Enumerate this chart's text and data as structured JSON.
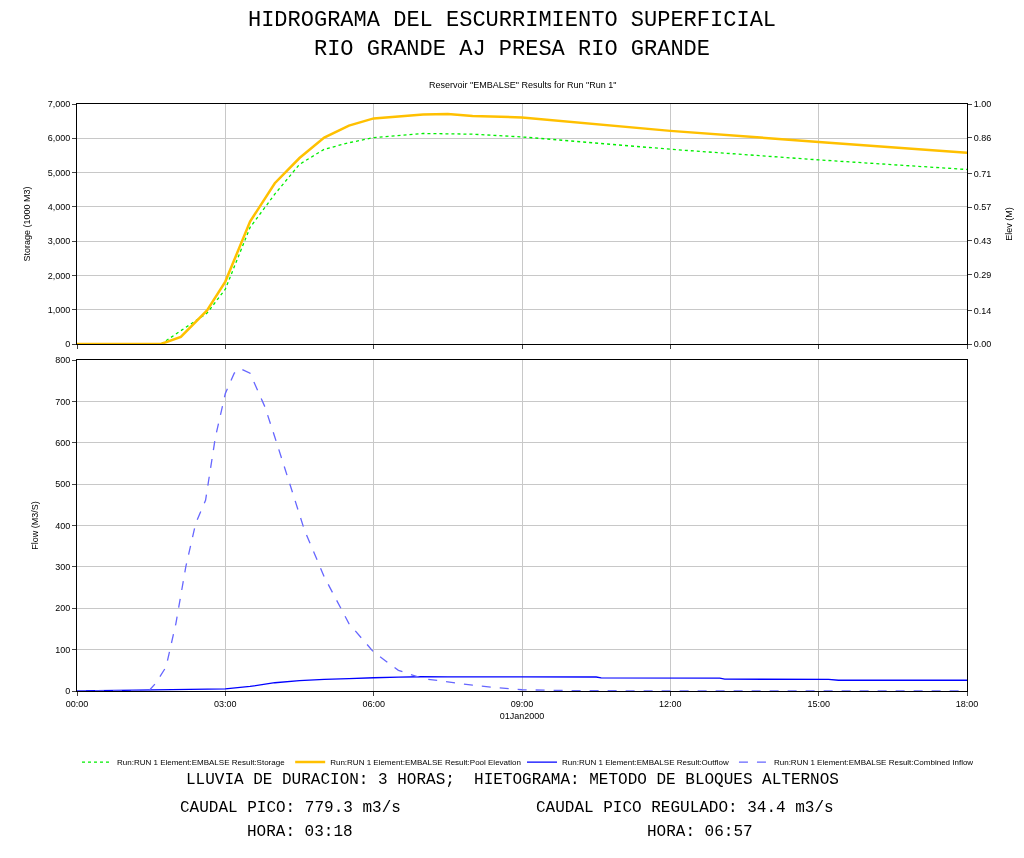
{
  "chart_data": [
    {
      "type": "line",
      "title": "HIDROGRAMA DEL ESCURRIMIENTO SUPERFICIAL\nRIO GRANDE AJ PRESA RIO GRANDE",
      "subtitle": "Reservoir \"EMBALSE\" Results for Run \"Run 1\"",
      "ylabel": "Storage (1000 M3)",
      "y2label": "Elev (M)",
      "xlim": [
        0,
        18
      ],
      "xticks": [
        {
          "value": 0,
          "label": null
        },
        {
          "value": 3,
          "label": null
        },
        {
          "value": 6,
          "label": null
        },
        {
          "value": 9,
          "label": null
        },
        {
          "value": 12,
          "label": null
        },
        {
          "value": 15,
          "label": null
        },
        {
          "value": 18,
          "label": null
        }
      ],
      "ylim": [
        0,
        7000
      ],
      "yticks": [
        0,
        {
          "value": 1000,
          "label": "1,000"
        },
        {
          "value": 2000,
          "label": "2,000"
        },
        {
          "value": 3000,
          "label": "3,000"
        },
        {
          "value": 4000,
          "label": "4,000"
        },
        {
          "value": 5000,
          "label": "5,000"
        },
        {
          "value": 6000,
          "label": "6,000"
        },
        {
          "value": 7000,
          "label": "7,000"
        }
      ],
      "y2lim": [
        0,
        1
      ],
      "y2ticks": [
        {
          "value": 0,
          "label": "0.00"
        },
        0.14,
        0.29,
        0.43,
        0.57,
        0.71,
        0.86,
        {
          "value": 1,
          "label": "1.00"
        }
      ],
      "grid": true,
      "tick_labels": "y",
      "legend": "bottom",
      "marker": "none",
      "series": [
        {
          "name": "Run:RUN 1 Element:EMBALSE Result:Storage",
          "color": "#00ee00",
          "line_style": "dotted",
          "x": [
            0,
            1.7,
            2.63,
            3,
            3.5,
            4,
            4.5,
            5,
            5.5,
            6,
            7,
            8,
            9,
            12,
            15,
            18
          ],
          "values": [
            0,
            0,
            900,
            1600,
            3400,
            4370,
            5240,
            5680,
            5870,
            6020,
            6140,
            6120,
            6040,
            5680,
            5370,
            5090
          ]
        },
        {
          "name": "Run:RUN 1 Element:EMBALSE Result:Pool Elevation",
          "color": "#ffc000",
          "line_style": "solid",
          "axis": "y2",
          "x": [
            0,
            1.7,
            2.1,
            2.63,
            3,
            3.5,
            4,
            4.5,
            5,
            5.5,
            6,
            7,
            7.5,
            8,
            9,
            12,
            15,
            18
          ],
          "values": [
            0,
            0,
            0.03,
            0.14,
            0.26,
            0.51,
            0.67,
            0.775,
            0.86,
            0.91,
            0.94,
            0.956,
            0.958,
            0.95,
            0.944,
            0.888,
            0.842,
            0.797
          ]
        }
      ]
    },
    {
      "type": "line",
      "xlabel": "01Jan2000",
      "ylabel": "Flow (M3/S)",
      "xlim": [
        0,
        18
      ],
      "xticks": [
        {
          "value": 0,
          "label": "00:00"
        },
        {
          "value": 3,
          "label": "03:00"
        },
        {
          "value": 6,
          "label": "06:00"
        },
        {
          "value": 9,
          "label": "09:00"
        },
        {
          "value": 12,
          "label": "12:00"
        },
        {
          "value": 15,
          "label": "15:00"
        },
        {
          "value": 18,
          "label": "18:00"
        }
      ],
      "ylim": [
        0,
        800
      ],
      "yticks": [
        0,
        100,
        200,
        300,
        400,
        500,
        600,
        700,
        800
      ],
      "grid": true,
      "legend": "bottom",
      "marker": "none",
      "annotations": [
        "LLUVIA DE DURACION: 3 HORAS;  HIETOGRAMA: METODO DE BLOQUES ALTERNOS",
        "CAUDAL PICO: 779.3 m3/s",
        "CAUDAL PICO REGULADO: 34.4 m3/s",
        "HORA: 03:18",
        "HORA: 06:57"
      ],
      "series": [
        {
          "name": "Run:RUN 1 Element:EMBALSE Result:Outflow",
          "color": "#0000ff",
          "line_style": "solid",
          "x": [
            0,
            1.2,
            3,
            3.5,
            4,
            4.5,
            5,
            5.5,
            6,
            6.5,
            6.95,
            7.5,
            8,
            9,
            10.5,
            10.6,
            13,
            13.1,
            15.2,
            15.4,
            18
          ],
          "values": [
            0,
            2,
            5,
            11,
            20,
            25,
            28,
            30,
            32,
            33.5,
            34.4,
            34.3,
            34.2,
            34,
            33.8,
            31.5,
            31,
            28.5,
            28.3,
            26,
            26
          ]
        },
        {
          "name": "Run:RUN 1 Element:EMBALSE Result:Combined Inflow",
          "color": "#6666ff",
          "line_style": "dashed",
          "x": [
            0,
            1.45,
            1.6,
            1.8,
            2.0,
            2.2,
            2.4,
            2.6,
            2.8,
            3.0,
            3.18,
            3.3,
            3.5,
            3.8,
            4.0,
            4.3,
            4.6,
            5.0,
            5.5,
            6.0,
            6.5,
            7.0,
            7.5,
            8.0,
            8.5,
            9.0,
            9.5,
            10,
            11,
            18
          ],
          "values": [
            0,
            0,
            20,
            58,
            163,
            300,
            405,
            461,
            614,
            719,
            768,
            779.3,
            768,
            687,
            614,
            502,
            389,
            276,
            163,
            94,
            50,
            30,
            22,
            14,
            8,
            3,
            2,
            1,
            0.5,
            0
          ]
        }
      ]
    }
  ]
}
